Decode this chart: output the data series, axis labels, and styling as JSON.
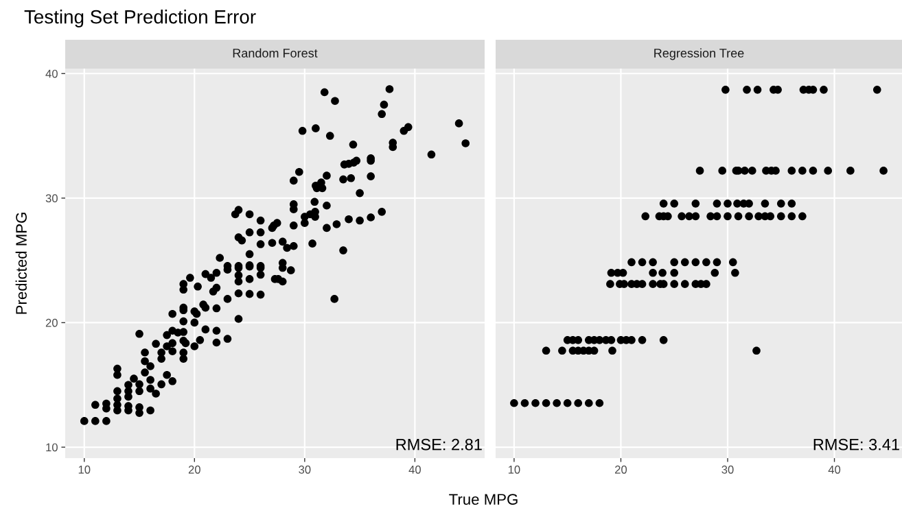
{
  "chart_data": [
    {
      "type": "scatter",
      "title": "Testing Set Prediction Error",
      "subtitle": "Random Forest",
      "xlabel": "True MPG",
      "ylabel": "Predicted MPG",
      "annotations": [
        "RMSE: 2.81"
      ],
      "xlim": [
        8.27,
        46.33
      ],
      "ylim": [
        9.12,
        40.4
      ],
      "xticks": [
        10,
        20,
        30,
        40
      ],
      "yticks": [
        10,
        20,
        30,
        40
      ],
      "grid": true,
      "marker": "circle",
      "series": [
        {
          "color": "#000000",
          "x": [
            24.0,
            23.7,
            25.0,
            26.0,
            27.2,
            25.0,
            26.0,
            27.05,
            24.0,
            24.3,
            26.0,
            27.05,
            22.3,
            25.0,
            23.0,
            24.0,
            25.0,
            26.0,
            31.8,
            32.75,
            37.7,
            37.2,
            37.0,
            44.0,
            29.8,
            31.0,
            32.3,
            39.0,
            39.4,
            44.6,
            34.4,
            38.0,
            38.0,
            41.5,
            33.6,
            34.0,
            34.45,
            34.7,
            36.0,
            36.0,
            29.5,
            29.0,
            32.0,
            33.5,
            34.2,
            36.0,
            31.0,
            31.5,
            31.1,
            31.6,
            35.0,
            29.0,
            29.0,
            30.9,
            32.0,
            30.0,
            30.5,
            30.95,
            30.95,
            30.0,
            27.5,
            29.0,
            32.0,
            32.9,
            34.0,
            35.0,
            36.0,
            37.0,
            28.0,
            28.4,
            29.0,
            30.7,
            33.5,
            28.0,
            28.0,
            28.75,
            27.6,
            28.0,
            32.7,
            10,
            11,
            12,
            11,
            12,
            12,
            13,
            13,
            13,
            13,
            13,
            13,
            14,
            14,
            14,
            14,
            14,
            14.5,
            15,
            15,
            15,
            15,
            15,
            15.5,
            15.5,
            15.5,
            16,
            16,
            16,
            16,
            16.5,
            17,
            17,
            17,
            16.5,
            17.5,
            17.5,
            18,
            17.5,
            18,
            18,
            18,
            18,
            18.5,
            19,
            19,
            19,
            19,
            19,
            19,
            19,
            19,
            19,
            19.2,
            19.6,
            20.3,
            20,
            20.2,
            20,
            20,
            20.5,
            21,
            20.8,
            21.0,
            21.0,
            21.5,
            22.0,
            21.7,
            22.0,
            22.0,
            22.0,
            22.0,
            23.0,
            23.0,
            23.0,
            24.0,
            24.0,
            24.0,
            24.0,
            24.0,
            25.0,
            25.0,
            25.0,
            26.0,
            26.0,
            26.0,
            27.3
          ],
          "values": [
            29.05,
            28.7,
            28.7,
            28.2,
            27.8,
            27.25,
            27.25,
            27.6,
            26.85,
            26.6,
            26.3,
            26.4,
            25.2,
            25.5,
            24.55,
            24.55,
            24.6,
            24.55,
            38.5,
            37.8,
            38.75,
            37.5,
            36.75,
            36.0,
            35.4,
            35.6,
            35.0,
            35.4,
            35.7,
            34.4,
            34.3,
            34.45,
            34.1,
            33.5,
            32.7,
            32.75,
            32.85,
            33.0,
            33.2,
            33.0,
            32.1,
            31.4,
            31.8,
            31.5,
            31.6,
            31.75,
            31.0,
            31.25,
            30.8,
            30.8,
            30.4,
            29.5,
            29.1,
            29.7,
            29.4,
            28.5,
            28.7,
            28.9,
            28.5,
            28.0,
            28.0,
            27.8,
            27.6,
            27.9,
            28.3,
            28.2,
            28.45,
            28.9,
            26.5,
            26.0,
            26.15,
            26.35,
            25.8,
            24.8,
            24.4,
            24.2,
            23.5,
            23.3,
            21.9,
            12.1,
            12.1,
            12.1,
            13.4,
            13.5,
            13.1,
            16.3,
            15.8,
            14.5,
            13.9,
            13.4,
            12.95,
            15.0,
            14.5,
            14.05,
            13.3,
            12.95,
            15.5,
            15.05,
            14.5,
            13.2,
            12.75,
            19.1,
            17.6,
            16.9,
            16.0,
            16.5,
            15.4,
            14.7,
            12.95,
            14.3,
            15.05,
            17.1,
            17.6,
            18.3,
            19.0,
            15.8,
            15.3,
            18.1,
            17.7,
            18.35,
            20.7,
            19.35,
            19.2,
            23.1,
            22.65,
            21.2,
            21.0,
            20.1,
            19.25,
            18.55,
            17.6,
            17.1,
            18.35,
            23.6,
            22.9,
            20.9,
            20.7,
            20.0,
            18.1,
            18.6,
            19.45,
            21.45,
            21.2,
            23.9,
            23.6,
            24.0,
            22.5,
            22.8,
            21.15,
            19.35,
            18.4,
            24.25,
            21.9,
            18.7,
            24.4,
            23.8,
            23.3,
            22.35,
            20.3,
            24.5,
            23.5,
            22.3,
            24.4,
            23.85,
            22.25,
            23.5
          ]
        }
      ]
    },
    {
      "type": "scatter",
      "subtitle": "Regression Tree",
      "annotations": [
        "RMSE: 3.41"
      ],
      "xlim": [
        8.27,
        46.33
      ],
      "ylim": [
        9.12,
        40.4
      ],
      "xticks": [
        10,
        20,
        30,
        40
      ],
      "yticks": [
        10,
        20,
        30,
        40
      ],
      "tick_labels": "x",
      "grid": true,
      "marker": "circle",
      "series": [
        {
          "color": "#000000",
          "x": [
            29.8,
            31.8,
            32.8,
            34.3,
            34.7,
            37.1,
            37.6,
            38.0,
            39.0,
            44.0,
            27.4,
            29.5,
            30.8,
            31.0,
            31.6,
            32.3,
            33.6,
            34.1,
            34.5,
            36.0,
            37.0,
            38.0,
            39.4,
            41.5,
            44.6,
            24.0,
            25.0,
            27.0,
            29.0,
            30.0,
            30.9,
            31.5,
            32.0,
            33.5,
            35.0,
            36.0,
            22.3,
            23.6,
            24.0,
            24.4,
            25.7,
            26.4,
            27.0,
            28.4,
            29.0,
            30.0,
            31.0,
            32.0,
            32.9,
            33.5,
            34.0,
            35.0,
            36.0,
            37.0,
            21.0,
            22.0,
            23.0,
            25.0,
            26.0,
            27.0,
            28.0,
            29.0,
            30.5,
            19.1,
            19.7,
            20.2,
            23.0,
            23.9,
            25.0,
            28.8,
            30.7,
            19.0,
            19.9,
            20.3,
            21.0,
            21.5,
            22.0,
            23.0,
            23.7,
            24.0,
            25.0,
            26.0,
            27.0,
            27.5,
            28.0,
            15.0,
            15.5,
            16.0,
            17.0,
            17.5,
            18.0,
            18.6,
            19.1,
            20.0,
            20.5,
            21.0,
            22.0,
            24.0,
            13.0,
            14.5,
            15.5,
            16.0,
            16.5,
            17.0,
            17.5,
            19.2,
            32.7,
            10,
            11,
            12,
            13,
            14,
            15,
            16,
            17,
            18
          ],
          "values": [
            38.7,
            38.7,
            38.7,
            38.7,
            38.7,
            38.7,
            38.7,
            38.7,
            38.7,
            38.7,
            32.2,
            32.2,
            32.2,
            32.2,
            32.2,
            32.2,
            32.2,
            32.2,
            32.2,
            32.2,
            32.2,
            32.2,
            32.2,
            32.2,
            32.2,
            29.56,
            29.56,
            29.56,
            29.56,
            29.56,
            29.56,
            29.56,
            29.56,
            29.56,
            29.56,
            29.56,
            28.54,
            28.54,
            28.54,
            28.54,
            28.54,
            28.54,
            28.54,
            28.54,
            28.54,
            28.54,
            28.54,
            28.54,
            28.54,
            28.54,
            28.54,
            28.54,
            28.54,
            28.54,
            24.85,
            24.85,
            24.85,
            24.85,
            24.85,
            24.85,
            24.85,
            24.85,
            24.85,
            24.0,
            24.0,
            24.0,
            24.0,
            24.0,
            24.0,
            24.0,
            24.0,
            23.1,
            23.1,
            23.1,
            23.1,
            23.1,
            23.1,
            23.1,
            23.1,
            23.1,
            23.1,
            23.1,
            23.1,
            23.1,
            23.1,
            18.6,
            18.6,
            18.6,
            18.6,
            18.6,
            18.6,
            18.6,
            18.6,
            18.6,
            18.6,
            18.6,
            18.6,
            18.6,
            17.75,
            17.75,
            17.75,
            17.75,
            17.75,
            17.75,
            17.75,
            17.75,
            17.75,
            13.54,
            13.54,
            13.54,
            13.54,
            13.54,
            13.54,
            13.54,
            13.54,
            13.54
          ]
        }
      ]
    }
  ]
}
